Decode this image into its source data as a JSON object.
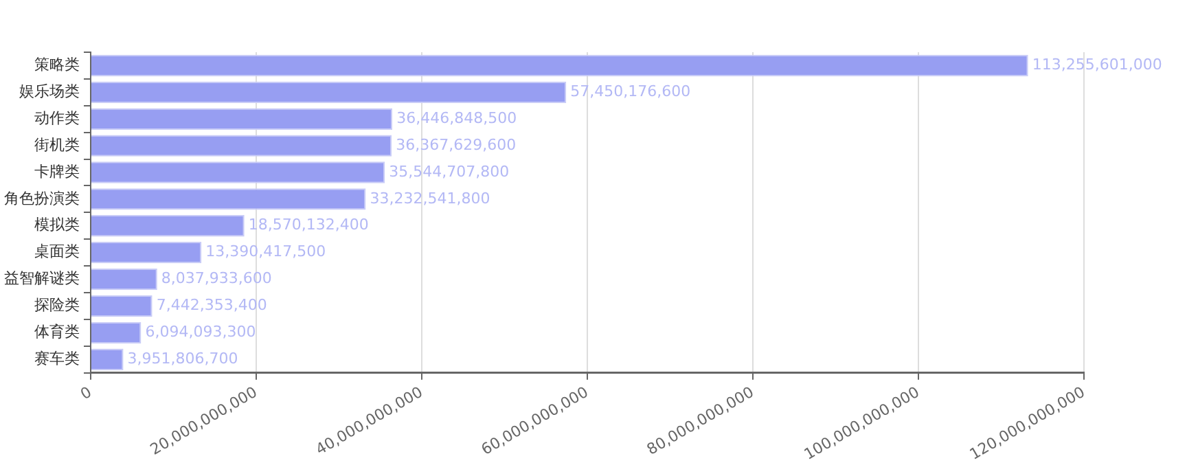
{
  "chart_data": {
    "type": "bar",
    "orientation": "horizontal",
    "categories": [
      "策略类",
      "娱乐场类",
      "动作类",
      "街机类",
      "卡牌类",
      "角色扮演类",
      "模拟类",
      "桌面类",
      "益智解谜类",
      "探险类",
      "体育类",
      "赛车类"
    ],
    "values": [
      113255601000,
      57450176600,
      36446848500,
      36367629600,
      35544707800,
      33232541800,
      18570132400,
      13390417500,
      8037933600,
      7442353400,
      6094093300,
      3951806700
    ],
    "value_labels": [
      "113,255,601,000",
      "57,450,176,600",
      "36,446,848,500",
      "36,367,629,600",
      "35,544,707,800",
      "33,232,541,800",
      "18,570,132,400",
      "13,390,417,500",
      "8,037,933,600",
      "7,442,353,400",
      "6,094,093,300",
      "3,951,806,700"
    ],
    "color": "#979ef2",
    "xlim": [
      0,
      120000000000
    ],
    "xticks": [
      0,
      {
        "value": 20000000000,
        "label": "20,000,000,000"
      },
      {
        "value": 40000000000,
        "label": "40,000,000,000"
      },
      {
        "value": 60000000000,
        "label": "60,000,000,000"
      },
      {
        "value": 80000000000,
        "label": "80,000,000,000"
      },
      {
        "value": 100000000000,
        "label": "100,000,000,000"
      },
      {
        "value": 120000000000,
        "label": "120,000,000,000"
      }
    ],
    "grid": "x",
    "legend": false
  }
}
